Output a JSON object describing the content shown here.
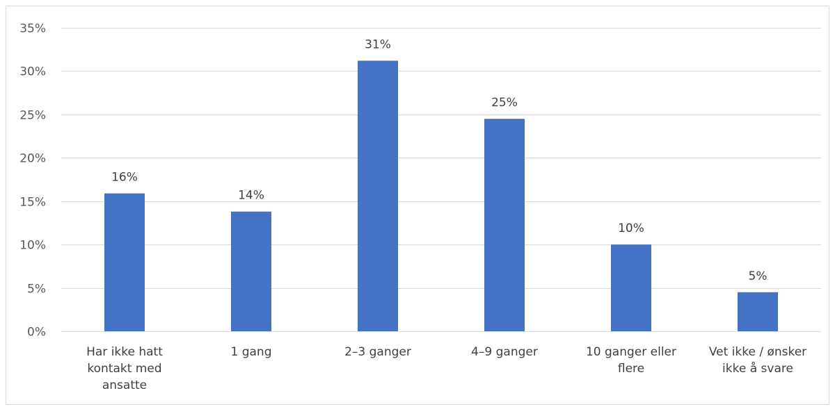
{
  "chart_data": {
    "type": "bar",
    "categories": [
      [
        "Har ikke hatt",
        "kontakt med",
        "ansatte"
      ],
      [
        "1 gang"
      ],
      [
        "2–3 ganger"
      ],
      [
        "4–9 ganger"
      ],
      [
        "10 ganger eller",
        "flere"
      ],
      [
        "Vet ikke / ønsker",
        "ikke å svare"
      ]
    ],
    "values": [
      15.9,
      13.8,
      31.2,
      24.5,
      10.0,
      4.5
    ],
    "data_labels": [
      "16%",
      "14%",
      "31%",
      "25%",
      "10%",
      "5%"
    ],
    "y_ticks": [
      {
        "value": 0,
        "label": "0%"
      },
      {
        "value": 5,
        "label": "5%"
      },
      {
        "value": 10,
        "label": "10%"
      },
      {
        "value": 15,
        "label": "15%"
      },
      {
        "value": 20,
        "label": "20%"
      },
      {
        "value": 25,
        "label": "25%"
      },
      {
        "value": 30,
        "label": "30%"
      },
      {
        "value": 35,
        "label": "35%"
      }
    ],
    "ylim": [
      0,
      35
    ],
    "grid": true,
    "bar_color": "#4472c4",
    "grid_color": "#d9d9d9"
  }
}
